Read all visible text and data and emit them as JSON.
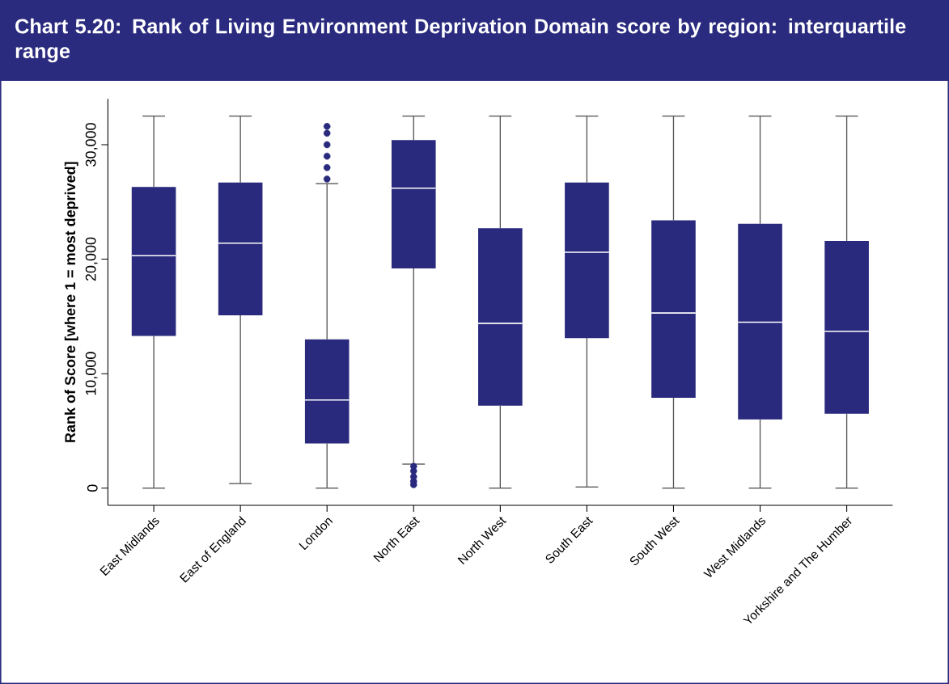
{
  "chart_data": {
    "type": "box",
    "title": "Chart 5.20:  Rank of Living Environment Deprivation Domain score by region: interquartile range",
    "ylabel": "Rank of Score [where 1 = most deprived]",
    "color": "#29297d",
    "categories": [
      "East Midlands",
      "East of England",
      "London",
      "North East",
      "North West",
      "South East",
      "South West",
      "West Midlands",
      "Yorkshire and The Humber"
    ],
    "boxes": [
      {
        "low": 0,
        "q1": 13300,
        "median": 20300,
        "q3": 26300,
        "high": 32500
      },
      {
        "low": 400,
        "q1": 15100,
        "median": 21400,
        "q3": 26700,
        "high": 32500
      },
      {
        "low": 0,
        "q1": 3900,
        "median": 7700,
        "q3": 13000,
        "high": 26600,
        "outliers": [
          27000,
          28000,
          29000,
          30000,
          31000,
          31600
        ]
      },
      {
        "low": 2100,
        "q1": 19200,
        "median": 26200,
        "q3": 30400,
        "high": 32500,
        "outliers": [
          300,
          600,
          1000,
          1500,
          1900
        ]
      },
      {
        "low": 0,
        "q1": 7200,
        "median": 14400,
        "q3": 22700,
        "high": 32500
      },
      {
        "low": 100,
        "q1": 13100,
        "median": 20600,
        "q3": 26700,
        "high": 32500
      },
      {
        "low": 0,
        "q1": 7900,
        "median": 15300,
        "q3": 23400,
        "high": 32500
      },
      {
        "low": 0,
        "q1": 6000,
        "median": 14500,
        "q3": 23100,
        "high": 32500
      },
      {
        "low": 0,
        "q1": 6500,
        "median": 13700,
        "q3": 21600,
        "high": 32500
      }
    ],
    "ylim": [
      -1500,
      34000
    ],
    "yticks": [
      0,
      {
        "value": 10000,
        "label": "10,000"
      },
      {
        "value": 20000,
        "label": "20,000"
      },
      {
        "value": 30000,
        "label": "30,000"
      }
    ]
  }
}
